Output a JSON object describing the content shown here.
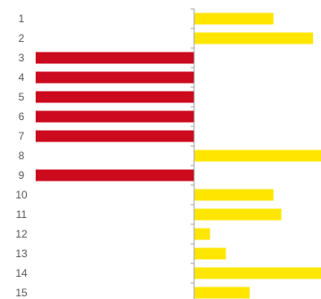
{
  "chart_data": {
    "type": "bar",
    "orientation": "horizontal",
    "title": "",
    "xlabel": "",
    "ylabel": "",
    "categories": [
      "1",
      "2",
      "3",
      "4",
      "5",
      "6",
      "7",
      "8",
      "9",
      "10",
      "11",
      "12",
      "13",
      "14",
      "15"
    ],
    "values": [
      1,
      1.5,
      -2,
      -2,
      -2,
      -2,
      -2,
      1.6,
      -2,
      1,
      1.1,
      0.2,
      0.4,
      1.6,
      0.7
    ],
    "xlim": [
      -2.45,
      1.6
    ],
    "grid": false,
    "legend": "none",
    "colors": {
      "positive": "#FFE600",
      "negative": "#CC0A1E",
      "axis": "#A6A6A6",
      "tick_label": "#595959"
    }
  }
}
